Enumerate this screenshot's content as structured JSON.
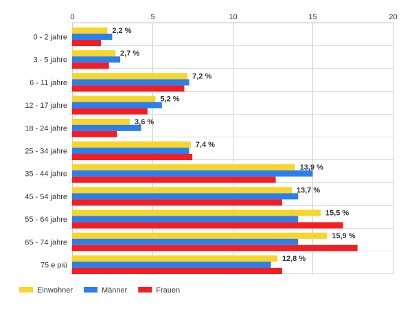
{
  "chart_data": {
    "type": "bar",
    "orientation": "horizontal",
    "categories": [
      "0 - 2 jahre",
      "3 - 5 jahre",
      "6 - 11 jahre",
      "12 - 17 jahre",
      "18 - 24 jahre",
      "25 - 34 jahre",
      "35 - 44 jahre",
      "45 - 54 jahre",
      "55 - 64 jahre",
      "65 - 74 jahre",
      "75 e più"
    ],
    "series": [
      {
        "name": "Einwohner",
        "color": "#f7d52a",
        "values": [
          2.2,
          2.7,
          7.2,
          5.2,
          3.6,
          7.4,
          13.9,
          13.7,
          15.5,
          15.9,
          12.8
        ],
        "labels": [
          "2,2 %",
          "2,7 %",
          "7,2 %",
          "5,2 %",
          "3,6 %",
          "7,4 %",
          "13,9 %",
          "13,7 %",
          "15,5 %",
          "15,9 %",
          "12,8 %"
        ]
      },
      {
        "name": "Männer",
        "color": "#2a7fed",
        "values": [
          2.5,
          3.0,
          7.3,
          5.6,
          4.3,
          7.3,
          15.0,
          14.1,
          14.1,
          14.1,
          12.4
        ]
      },
      {
        "name": "Frauen",
        "color": "#f41d22",
        "values": [
          1.8,
          2.3,
          7.0,
          4.7,
          2.8,
          7.5,
          12.7,
          13.1,
          16.9,
          17.8,
          13.1
        ]
      }
    ],
    "xlim": [
      0,
      20
    ],
    "xticks": [
      0,
      5,
      10,
      15,
      20
    ],
    "grid": true,
    "legend_position": "bottom-left",
    "title": "",
    "xlabel": "",
    "ylabel": ""
  }
}
